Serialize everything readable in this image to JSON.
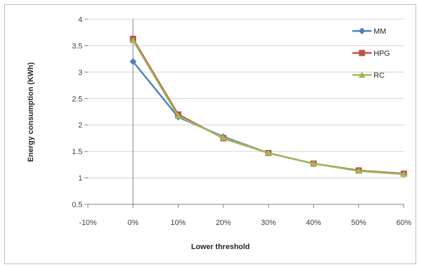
{
  "chart_data": {
    "type": "line",
    "title": "",
    "xlabel": "Lower threshold",
    "ylabel": "Energy consumption (KWh)",
    "x_ticks": [
      "-10%",
      "0%",
      "10%",
      "20%",
      "30%",
      "40%",
      "50%",
      "60%"
    ],
    "x_tick_values": [
      -10,
      0,
      10,
      20,
      30,
      40,
      50,
      60
    ],
    "y_ticks": [
      "0.5",
      "1",
      "1.5",
      "2",
      "2.5",
      "3",
      "3.5",
      "4"
    ],
    "y_tick_values": [
      0.5,
      1,
      1.5,
      2,
      2.5,
      3,
      3.5,
      4
    ],
    "xlim": [
      -10,
      60
    ],
    "ylim": [
      0.5,
      4
    ],
    "x": [
      0,
      10,
      20,
      30,
      40,
      50,
      60
    ],
    "series": [
      {
        "name": "MM",
        "values": [
          3.2,
          2.15,
          1.78,
          1.47,
          1.27,
          1.14,
          1.07
        ],
        "color": "#4f81bd",
        "marker": "diamond"
      },
      {
        "name": "HPG",
        "values": [
          3.63,
          2.2,
          1.75,
          1.47,
          1.27,
          1.14,
          1.08
        ],
        "color": "#c0504d",
        "marker": "square"
      },
      {
        "name": "RC",
        "values": [
          3.6,
          2.17,
          1.76,
          1.47,
          1.27,
          1.13,
          1.07
        ],
        "color": "#9bbb59",
        "marker": "triangle"
      }
    ],
    "grid": "horizontal",
    "legend_position": "top-right"
  }
}
